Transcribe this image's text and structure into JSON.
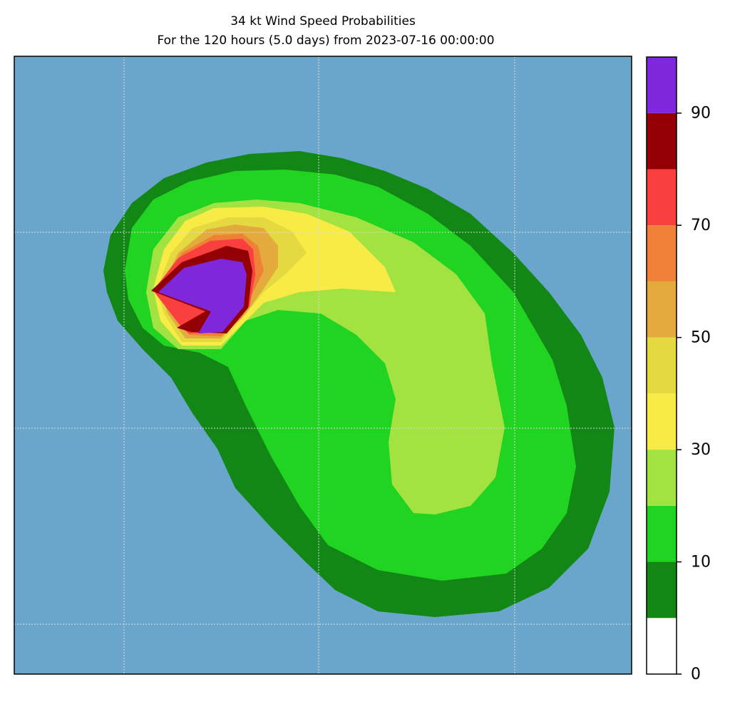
{
  "chart_data": {
    "type": "contourf",
    "title": "34 kt Wind Speed Probabilities",
    "subtitle": "For the 120 hours (5.0 days) from 2023-07-16 00:00:00",
    "background": "#6aa6cc",
    "levels": [
      0,
      5,
      10,
      20,
      30,
      40,
      50,
      60,
      70,
      80,
      90,
      100
    ],
    "colors": [
      "#ffffff",
      "#138715",
      "#21d422",
      "#a2e341",
      "#f9eb46",
      "#e5d941",
      "#e3ab3c",
      "#ee8136",
      "#fa3f3f",
      "#930004",
      "#7f27da"
    ],
    "cbar_ticks": [
      0,
      10,
      30,
      50,
      70,
      90
    ],
    "grid": true
  }
}
